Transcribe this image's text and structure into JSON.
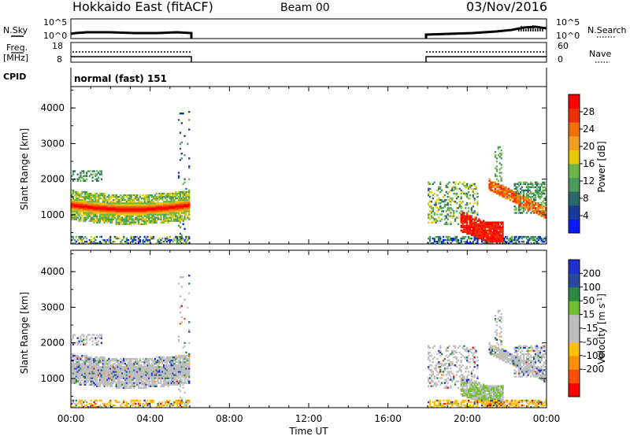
{
  "header": {
    "title": "Hokkaido East (fitACF)",
    "beam": "Beam 00",
    "date": "03/Nov/2016"
  },
  "panels": {
    "nsky": {
      "left_label": "N.Sky",
      "right_label": "N.Search",
      "left_ticks": [
        "10^5",
        "10^0"
      ],
      "right_ticks": [
        "10^5",
        "10^0"
      ]
    },
    "freq": {
      "left_label_1": "Freq.",
      "left_label_2": "[MHz]",
      "right_label": "Nave",
      "left_ticks": [
        "18",
        "8"
      ],
      "right_ticks": [
        "60",
        "0"
      ]
    },
    "cpid": {
      "label": "CPID",
      "value": "normal (fast) 151"
    }
  },
  "colors": {
    "power": [
      "#0a1aff",
      "#1a3a9a",
      "#2a6a6a",
      "#4a9a5a",
      "#6ab84a",
      "#e8c800",
      "#f0a020",
      "#f07000",
      "#f03000",
      "#ff0000"
    ],
    "velocity": [
      "#ff0000",
      "#ff5000",
      "#ff9000",
      "#ffc000",
      "#bebebe",
      "#bebebe",
      "#70c030",
      "#2a8a40",
      "#2a4aa0",
      "#2030d0"
    ]
  },
  "chart_data": [
    {
      "type": "heatmap",
      "name_hint": "power-panel",
      "ylabel": "Slant Range [km]",
      "xlabel": "Time UT",
      "x_ticks": [
        "00:00",
        "04:00",
        "08:00",
        "12:00",
        "16:00",
        "20:00",
        "00:00"
      ],
      "y_ticks": [
        1000,
        2000,
        3000,
        4000
      ],
      "ylim": [
        180,
        4600
      ],
      "x_range_hours": [
        0,
        24
      ],
      "data_intervals_hours": [
        [
          0,
          6
        ],
        [
          18,
          24
        ]
      ],
      "colorbar": {
        "label": "Power [dB]",
        "ticks": [
          4,
          8,
          12,
          16,
          20,
          24,
          28
        ]
      }
    },
    {
      "type": "heatmap",
      "name_hint": "velocity-panel",
      "ylabel": "Slant Range [km]",
      "xlabel": "Time UT",
      "x_ticks": [
        "00:00",
        "04:00",
        "08:00",
        "12:00",
        "16:00",
        "20:00",
        "00:00"
      ],
      "y_ticks": [
        1000,
        2000,
        3000,
        4000
      ],
      "ylim": [
        180,
        4600
      ],
      "x_range_hours": [
        0,
        24
      ],
      "data_intervals_hours": [
        [
          0,
          6
        ],
        [
          18,
          24
        ]
      ],
      "colorbar": {
        "label": "Velocity [m s^-1]",
        "ticks": [
          200,
          100,
          50,
          15,
          -15,
          -50,
          -100,
          -200
        ]
      }
    }
  ]
}
